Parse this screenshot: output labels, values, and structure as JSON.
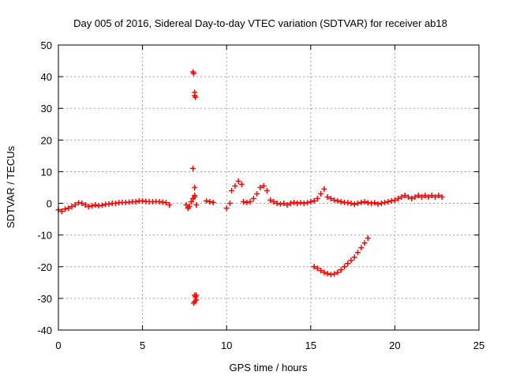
{
  "chart_data": {
    "type": "scatter",
    "title": "Day 005 of 2016, Sidereal Day-to-day VTEC variation (SDTVAR) for receiver ab18",
    "xlabel": "GPS time / hours",
    "ylabel": "SDTVAR / TECUs",
    "xlim": [
      0,
      25
    ],
    "ylim": [
      -40,
      50
    ],
    "xticks": [
      0,
      5,
      10,
      15,
      20,
      25
    ],
    "yticks": [
      -40,
      -30,
      -20,
      -10,
      0,
      10,
      20,
      30,
      40,
      50
    ],
    "grid": true,
    "marker": "plus",
    "color": "#ff0000",
    "segments": [
      {
        "name": "baseline-early",
        "points": [
          [
            0.0,
            -2.0
          ],
          [
            0.2,
            -2.5
          ],
          [
            0.4,
            -1.8
          ],
          [
            0.6,
            -1.5
          ],
          [
            0.8,
            -1.0
          ],
          [
            1.0,
            -0.5
          ],
          [
            1.2,
            0.2
          ],
          [
            1.4,
            0.0
          ],
          [
            1.6,
            -0.5
          ],
          [
            1.8,
            -1.0
          ],
          [
            2.0,
            -0.8
          ],
          [
            2.2,
            -0.5
          ],
          [
            2.4,
            -0.8
          ],
          [
            2.6,
            -0.6
          ],
          [
            2.8,
            -0.3
          ],
          [
            3.0,
            -0.2
          ],
          [
            3.2,
            0.0
          ],
          [
            3.4,
            0.0
          ],
          [
            3.6,
            0.2
          ],
          [
            3.8,
            0.3
          ],
          [
            4.0,
            0.3
          ],
          [
            4.2,
            0.4
          ],
          [
            4.4,
            0.5
          ],
          [
            4.6,
            0.5
          ],
          [
            4.8,
            0.8
          ],
          [
            5.0,
            0.8
          ],
          [
            5.2,
            0.6
          ],
          [
            5.4,
            0.5
          ],
          [
            5.6,
            0.5
          ],
          [
            5.8,
            0.6
          ],
          [
            6.0,
            0.5
          ],
          [
            6.2,
            0.4
          ],
          [
            6.4,
            0.2
          ],
          [
            6.6,
            -0.5
          ]
        ]
      },
      {
        "name": "spike-8h",
        "points": [
          [
            7.6,
            -0.5
          ],
          [
            7.7,
            -1.5
          ],
          [
            7.8,
            -1.0
          ],
          [
            7.9,
            0.5
          ],
          [
            8.0,
            1.5
          ],
          [
            8.1,
            2.0
          ],
          [
            8.2,
            -0.5
          ],
          [
            8.0,
            41.5
          ],
          [
            8.05,
            41.0
          ],
          [
            8.1,
            35.0
          ],
          [
            8.1,
            34.0
          ],
          [
            8.15,
            33.5
          ],
          [
            8.0,
            11.0
          ],
          [
            8.1,
            5.0
          ],
          [
            8.1,
            2.5
          ],
          [
            8.1,
            -29.0
          ],
          [
            8.15,
            -29.5
          ],
          [
            8.2,
            -30.5
          ],
          [
            8.1,
            -31.0
          ],
          [
            8.05,
            -31.5
          ],
          [
            8.2,
            -29.0
          ]
        ]
      },
      {
        "name": "segment-9h",
        "points": [
          [
            8.8,
            0.8
          ],
          [
            9.0,
            0.5
          ],
          [
            9.2,
            0.3
          ]
        ]
      },
      {
        "name": "segment-10-15h",
        "points": [
          [
            10.0,
            -1.5
          ],
          [
            10.2,
            0.0
          ],
          [
            10.3,
            4.0
          ],
          [
            10.5,
            5.5
          ],
          [
            10.7,
            7.0
          ],
          [
            10.9,
            6.0
          ],
          [
            11.0,
            0.5
          ],
          [
            11.2,
            0.3
          ],
          [
            11.4,
            0.5
          ],
          [
            11.6,
            1.5
          ],
          [
            11.8,
            3.0
          ],
          [
            12.0,
            5.0
          ],
          [
            12.2,
            5.5
          ],
          [
            12.4,
            4.0
          ],
          [
            12.6,
            1.0
          ],
          [
            12.8,
            0.5
          ],
          [
            13.0,
            0.0
          ],
          [
            13.2,
            -0.2
          ],
          [
            13.4,
            0.0
          ],
          [
            13.6,
            -0.5
          ],
          [
            13.8,
            0.0
          ],
          [
            14.0,
            0.3
          ],
          [
            14.2,
            0.0
          ],
          [
            14.4,
            0.2
          ],
          [
            14.6,
            0.0
          ],
          [
            14.8,
            0.2
          ],
          [
            15.0,
            0.5
          ],
          [
            15.2,
            0.8
          ]
        ]
      },
      {
        "name": "bump-15h",
        "points": [
          [
            15.4,
            1.5
          ],
          [
            15.6,
            3.0
          ],
          [
            15.8,
            4.5
          ],
          [
            16.0,
            2.0
          ],
          [
            16.2,
            1.5
          ],
          [
            16.4,
            1.0
          ],
          [
            16.6,
            0.8
          ],
          [
            16.8,
            0.5
          ],
          [
            17.0,
            0.3
          ],
          [
            17.2,
            0.2
          ],
          [
            17.4,
            0.0
          ],
          [
            17.6,
            -0.3
          ],
          [
            17.8,
            0.0
          ],
          [
            18.0,
            0.3
          ],
          [
            18.2,
            0.5
          ],
          [
            18.4,
            0.2
          ],
          [
            18.6,
            0.0
          ],
          [
            18.8,
            0.2
          ],
          [
            19.0,
            -0.2
          ],
          [
            19.2,
            0.0
          ],
          [
            19.4,
            0.3
          ],
          [
            19.6,
            0.5
          ],
          [
            19.8,
            0.8
          ]
        ]
      },
      {
        "name": "baseline-late",
        "points": [
          [
            20.0,
            1.0
          ],
          [
            20.2,
            1.5
          ],
          [
            20.4,
            2.0
          ],
          [
            20.6,
            2.5
          ],
          [
            20.8,
            2.0
          ],
          [
            21.0,
            1.5
          ],
          [
            21.2,
            2.0
          ],
          [
            21.4,
            2.5
          ],
          [
            21.6,
            2.0
          ],
          [
            21.8,
            2.5
          ],
          [
            22.0,
            2.0
          ],
          [
            22.2,
            2.5
          ],
          [
            22.4,
            2.0
          ],
          [
            22.6,
            2.5
          ],
          [
            22.8,
            2.0
          ]
        ]
      },
      {
        "name": "dip-arc",
        "points": [
          [
            15.2,
            -20.0
          ],
          [
            15.4,
            -20.5
          ],
          [
            15.6,
            -21.2
          ],
          [
            15.8,
            -21.8
          ],
          [
            16.0,
            -22.2
          ],
          [
            16.2,
            -22.5
          ],
          [
            16.4,
            -22.3
          ],
          [
            16.6,
            -21.8
          ],
          [
            16.8,
            -21.0
          ],
          [
            17.0,
            -20.0
          ],
          [
            17.2,
            -19.0
          ],
          [
            17.4,
            -18.0
          ],
          [
            17.6,
            -17.0
          ],
          [
            17.8,
            -15.5
          ],
          [
            18.0,
            -14.0
          ],
          [
            18.2,
            -12.5
          ],
          [
            18.4,
            -11.0
          ]
        ]
      }
    ]
  }
}
